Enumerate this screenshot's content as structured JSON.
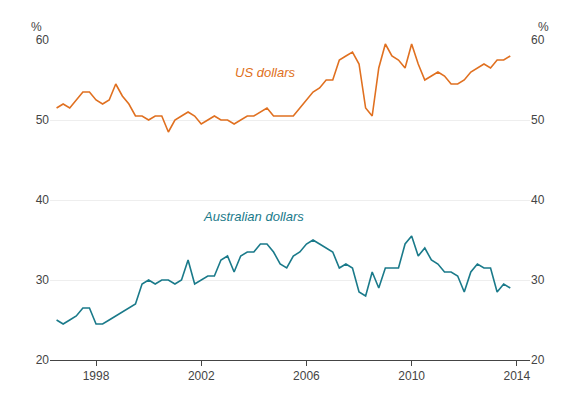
{
  "chart_data": {
    "type": "line",
    "x": [
      1996.5,
      1996.75,
      1997.0,
      1997.25,
      1997.5,
      1997.75,
      1998.0,
      1998.25,
      1998.5,
      1998.75,
      1999.0,
      1999.25,
      1999.5,
      1999.75,
      2000.0,
      2000.25,
      2000.5,
      2000.75,
      2001.0,
      2001.25,
      2001.5,
      2001.75,
      2002.0,
      2002.25,
      2002.5,
      2002.75,
      2003.0,
      2003.25,
      2003.5,
      2003.75,
      2004.0,
      2004.25,
      2004.5,
      2004.75,
      2005.0,
      2005.25,
      2005.5,
      2005.75,
      2006.0,
      2006.25,
      2006.5,
      2006.75,
      2007.0,
      2007.25,
      2007.5,
      2007.75,
      2008.0,
      2008.25,
      2008.5,
      2008.75,
      2009.0,
      2009.25,
      2009.5,
      2009.75,
      2010.0,
      2010.25,
      2010.5,
      2010.75,
      2011.0,
      2011.25,
      2011.5,
      2011.75,
      2012.0,
      2012.25,
      2012.5,
      2012.75,
      2013.0,
      2013.25,
      2013.5,
      2013.75
    ],
    "series": [
      {
        "color": "#E07020",
        "values": [
          51.5,
          52.0,
          51.5,
          52.5,
          53.5,
          53.5,
          52.5,
          52.0,
          52.5,
          54.5,
          53.0,
          52.0,
          50.5,
          50.5,
          50.0,
          50.5,
          50.5,
          48.5,
          50.0,
          50.5,
          51.0,
          50.5,
          49.5,
          50.0,
          50.5,
          50.0,
          50.0,
          49.5,
          50.0,
          50.5,
          50.5,
          51.0,
          51.5,
          50.5,
          50.5,
          50.5,
          50.5,
          51.5,
          52.5,
          53.5,
          54.0,
          55.0,
          55.0,
          57.5,
          58.0,
          58.5,
          57.0,
          51.5,
          50.5,
          56.5,
          59.5,
          58.0,
          57.5,
          56.5,
          59.5,
          57.0,
          55.0,
          55.5,
          56.0,
          55.5,
          54.5,
          54.5,
          55.0,
          56.0,
          56.5,
          57.0,
          56.5,
          57.5,
          57.5,
          58.0
        ]
      },
      {
        "color": "#1A7A8A",
        "values": [
          25.0,
          24.5,
          25.0,
          25.5,
          26.5,
          26.5,
          24.5,
          24.5,
          25.0,
          25.5,
          26.0,
          26.5,
          27.0,
          29.5,
          30.0,
          29.5,
          30.0,
          30.0,
          29.5,
          30.0,
          32.5,
          29.5,
          30.0,
          30.5,
          30.5,
          32.5,
          33.0,
          31.0,
          33.0,
          33.5,
          33.5,
          34.5,
          34.5,
          33.5,
          32.0,
          31.5,
          33.0,
          33.5,
          34.5,
          35.0,
          34.5,
          34.0,
          33.5,
          31.5,
          32.0,
          31.5,
          28.5,
          28.0,
          31.0,
          29.0,
          31.5,
          31.5,
          31.5,
          34.5,
          35.5,
          33.0,
          34.0,
          32.5,
          32.0,
          31.0,
          31.0,
          30.5,
          28.5,
          31.0,
          32.0,
          31.5,
          31.5,
          28.5,
          29.5,
          29.0
        ]
      }
    ],
    "annotations": [
      {
        "text": "US dollars",
        "x": 2003.2,
        "y": 54.8,
        "color": "#E07020"
      },
      {
        "text": "Australian dollars",
        "x": 2002.0,
        "y": 36.8,
        "color": "#1A7A8A"
      }
    ],
    "ylabel": "%",
    "y2label": "%",
    "xlim": [
      1996.25,
      2014.5
    ],
    "xticks": [
      1998,
      2002,
      2006,
      2010,
      2014
    ],
    "ylim": [
      20,
      60
    ],
    "yticks": [
      20,
      30,
      40,
      50,
      60
    ],
    "y2lim": [
      20,
      60
    ],
    "y2ticks": [
      20,
      30,
      40,
      50,
      60
    ],
    "grid": true
  }
}
